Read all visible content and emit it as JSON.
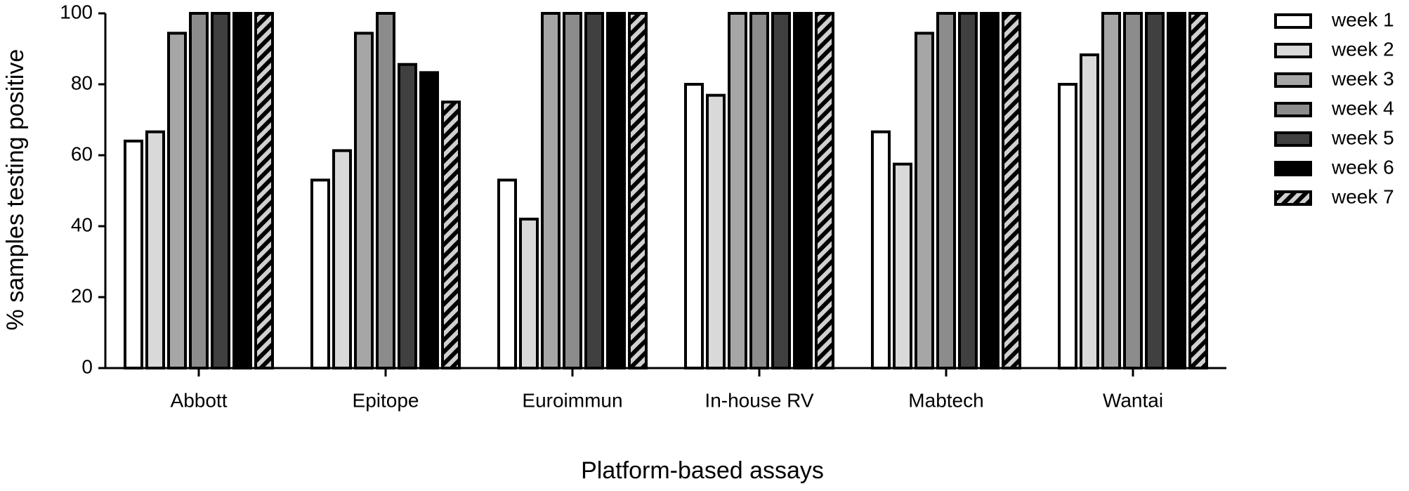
{
  "chart_data": {
    "type": "bar",
    "x_label": "Platform-based assays",
    "y_label": "% samples testing positive",
    "categories": [
      "Abbott",
      "Epitope",
      "Euroimmun",
      "In-house RV",
      "Mabtech",
      "Wantai"
    ],
    "series": [
      {
        "name": "week 1",
        "color": "#ffffff",
        "values": [
          64,
          53,
          53,
          80,
          66.6,
          80
        ]
      },
      {
        "name": "week 2",
        "color": "#d9d9d9",
        "values": [
          66.6,
          61.3,
          42,
          76.9,
          57.5,
          88.3
        ]
      },
      {
        "name": "week 3",
        "color": "#a6a6a6",
        "values": [
          94.4,
          94.4,
          100,
          100,
          94.4,
          100
        ]
      },
      {
        "name": "week 4",
        "color": "#8c8c8c",
        "values": [
          100,
          100,
          100,
          100,
          100,
          100
        ]
      },
      {
        "name": "week 5",
        "color": "#404040",
        "values": [
          100,
          85.6,
          100,
          100,
          100,
          100
        ]
      },
      {
        "name": "week 6",
        "color": "#000000",
        "values": [
          100,
          83.3,
          100,
          100,
          100,
          100
        ]
      },
      {
        "name": "week 7",
        "color": "#000000",
        "pattern": "hatch",
        "values": [
          100,
          75,
          100,
          100,
          100,
          100
        ]
      }
    ],
    "ylim": [
      0,
      100
    ],
    "yticks": [
      0,
      20,
      40,
      60,
      80,
      100
    ],
    "grid": false,
    "legend": "right"
  }
}
